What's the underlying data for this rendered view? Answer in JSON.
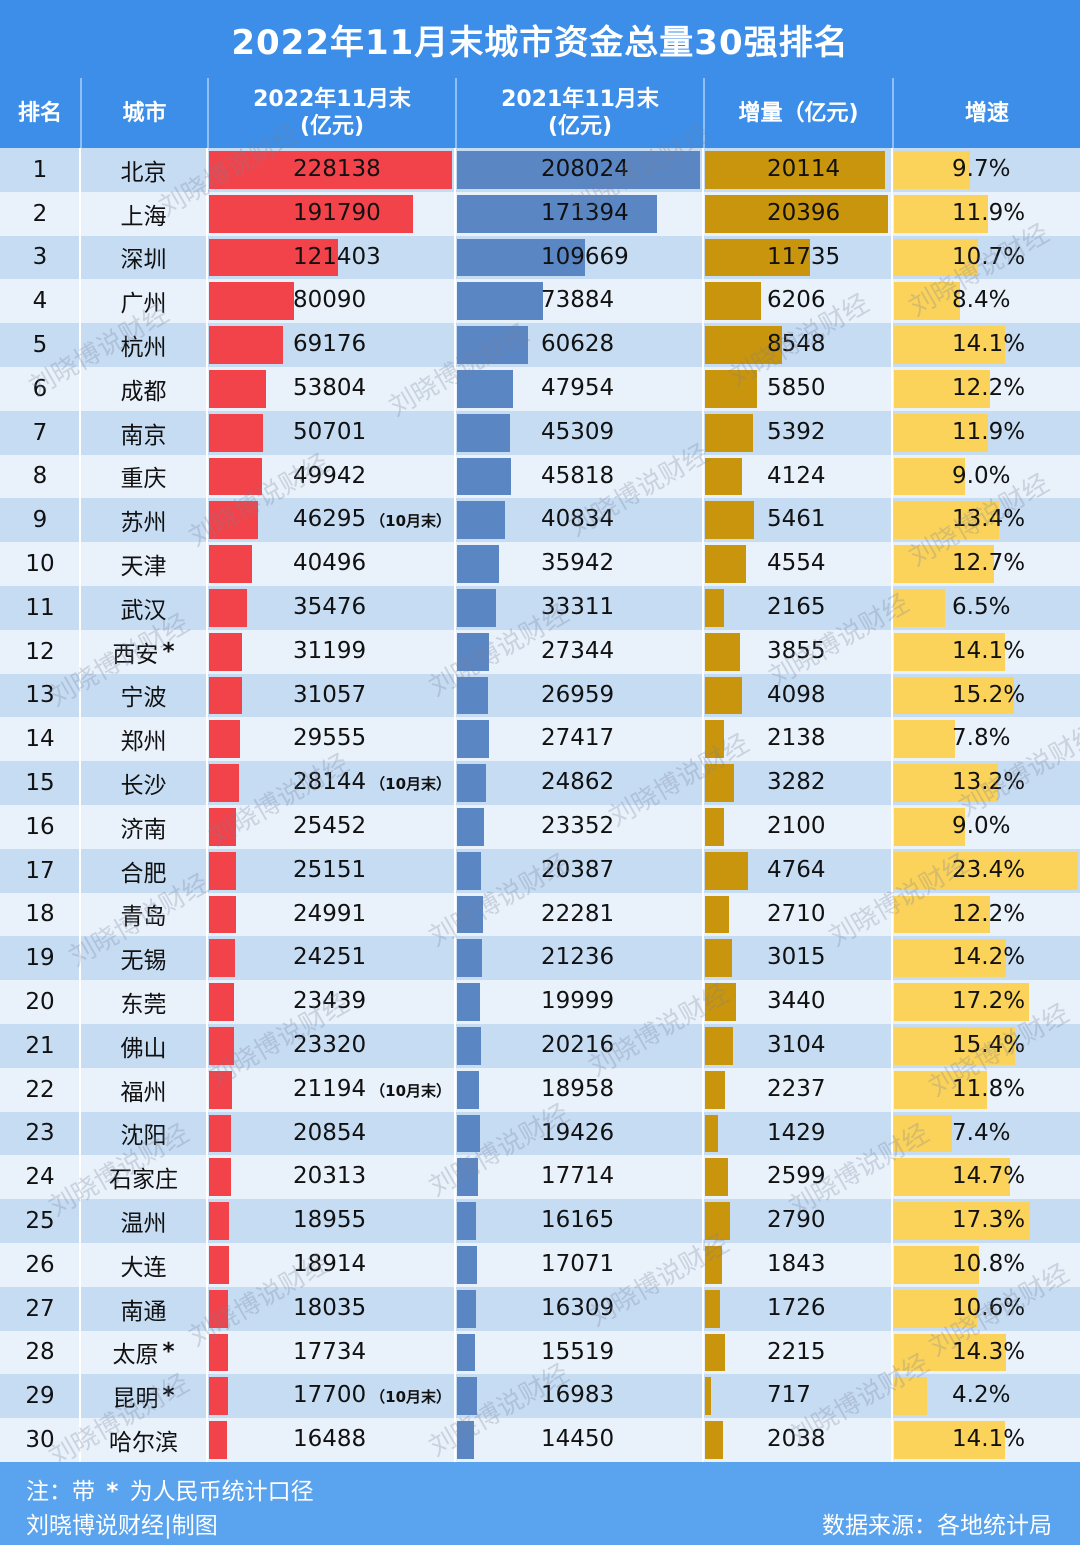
{
  "title": "2022年11月末城市资金总量30强排名",
  "headers": {
    "rank": "排名",
    "city": "城市",
    "v2022_line1": "2022年11月末",
    "v2022_line2": "(亿元)",
    "v2021_line1": "2021年11月末",
    "v2021_line2": "(亿元)",
    "increase": "增量（亿元)",
    "growth": "增速"
  },
  "colors": {
    "header_bg": "#3c8ee8",
    "bar_2022": "#f2434b",
    "bar_2021": "#5b86c4",
    "bar_increase": "#c9950c",
    "bar_growth": "#fbd35a"
  },
  "chart_data": {
    "type": "table",
    "title": "2022年11月末城市资金总量30强排名",
    "columns": [
      "排名",
      "城市",
      "2022年11月末(亿元)",
      "2021年11月末(亿元)",
      "增量（亿元)",
      "增速"
    ],
    "rows": [
      {
        "rank": "1",
        "city": "北京",
        "v2022": 228138,
        "v2021": 208024,
        "inc": 20114,
        "growth": 9.7,
        "growth_label": "9.7%",
        "note": "",
        "star": ""
      },
      {
        "rank": "2",
        "city": "上海",
        "v2022": 191790,
        "v2021": 171394,
        "inc": 20396,
        "growth": 11.9,
        "growth_label": "11.9%",
        "note": "",
        "star": ""
      },
      {
        "rank": "3",
        "city": "深圳",
        "v2022": 121403,
        "v2021": 109669,
        "inc": 11735,
        "growth": 10.7,
        "growth_label": "10.7%",
        "note": "",
        "star": ""
      },
      {
        "rank": "4",
        "city": "广州",
        "v2022": 80090,
        "v2021": 73884,
        "inc": 6206,
        "growth": 8.4,
        "growth_label": "8.4%",
        "note": "",
        "star": ""
      },
      {
        "rank": "5",
        "city": "杭州",
        "v2022": 69176,
        "v2021": 60628,
        "inc": 8548,
        "growth": 14.1,
        "growth_label": "14.1%",
        "note": "",
        "star": ""
      },
      {
        "rank": "6",
        "city": "成都",
        "v2022": 53804,
        "v2021": 47954,
        "inc": 5850,
        "growth": 12.2,
        "growth_label": "12.2%",
        "note": "",
        "star": ""
      },
      {
        "rank": "7",
        "city": "南京",
        "v2022": 50701,
        "v2021": 45309,
        "inc": 5392,
        "growth": 11.9,
        "growth_label": "11.9%",
        "note": "",
        "star": ""
      },
      {
        "rank": "8",
        "city": "重庆",
        "v2022": 49942,
        "v2021": 45818,
        "inc": 4124,
        "growth": 9.0,
        "growth_label": "9.0%",
        "note": "",
        "star": ""
      },
      {
        "rank": "9",
        "city": "苏州",
        "v2022": 46295,
        "v2021": 40834,
        "inc": 5461,
        "growth": 13.4,
        "growth_label": "13.4%",
        "note": "（10月末）",
        "star": ""
      },
      {
        "rank": "10",
        "city": "天津",
        "v2022": 40496,
        "v2021": 35942,
        "inc": 4554,
        "growth": 12.7,
        "growth_label": "12.7%",
        "note": "",
        "star": ""
      },
      {
        "rank": "11",
        "city": "武汉",
        "v2022": 35476,
        "v2021": 33311,
        "inc": 2165,
        "growth": 6.5,
        "growth_label": "6.5%",
        "note": "",
        "star": ""
      },
      {
        "rank": "12",
        "city": "西安",
        "v2022": 31199,
        "v2021": 27344,
        "inc": 3855,
        "growth": 14.1,
        "growth_label": "14.1%",
        "note": "",
        "star": "*"
      },
      {
        "rank": "13",
        "city": "宁波",
        "v2022": 31057,
        "v2021": 26959,
        "inc": 4098,
        "growth": 15.2,
        "growth_label": "15.2%",
        "note": "",
        "star": ""
      },
      {
        "rank": "14",
        "city": "郑州",
        "v2022": 29555,
        "v2021": 27417,
        "inc": 2138,
        "growth": 7.8,
        "growth_label": "7.8%",
        "note": "",
        "star": ""
      },
      {
        "rank": "15",
        "city": "长沙",
        "v2022": 28144,
        "v2021": 24862,
        "inc": 3282,
        "growth": 13.2,
        "growth_label": "13.2%",
        "note": "（10月末）",
        "star": ""
      },
      {
        "rank": "16",
        "city": "济南",
        "v2022": 25452,
        "v2021": 23352,
        "inc": 2100,
        "growth": 9.0,
        "growth_label": "9.0%",
        "note": "",
        "star": ""
      },
      {
        "rank": "17",
        "city": "合肥",
        "v2022": 25151,
        "v2021": 20387,
        "inc": 4764,
        "growth": 23.4,
        "growth_label": "23.4%",
        "note": "",
        "star": ""
      },
      {
        "rank": "18",
        "city": "青岛",
        "v2022": 24991,
        "v2021": 22281,
        "inc": 2710,
        "growth": 12.2,
        "growth_label": "12.2%",
        "note": "",
        "star": ""
      },
      {
        "rank": "19",
        "city": "无锡",
        "v2022": 24251,
        "v2021": 21236,
        "inc": 3015,
        "growth": 14.2,
        "growth_label": "14.2%",
        "note": "",
        "star": ""
      },
      {
        "rank": "20",
        "city": "东莞",
        "v2022": 23439,
        "v2021": 19999,
        "inc": 3440,
        "growth": 17.2,
        "growth_label": "17.2%",
        "note": "",
        "star": ""
      },
      {
        "rank": "21",
        "city": "佛山",
        "v2022": 23320,
        "v2021": 20216,
        "inc": 3104,
        "growth": 15.4,
        "growth_label": "15.4%",
        "note": "",
        "star": ""
      },
      {
        "rank": "22",
        "city": "福州",
        "v2022": 21194,
        "v2021": 18958,
        "inc": 2237,
        "growth": 11.8,
        "growth_label": "11.8%",
        "note": "（10月末）",
        "star": ""
      },
      {
        "rank": "23",
        "city": "沈阳",
        "v2022": 20854,
        "v2021": 19426,
        "inc": 1429,
        "growth": 7.4,
        "growth_label": "7.4%",
        "note": "",
        "star": ""
      },
      {
        "rank": "24",
        "city": "石家庄",
        "v2022": 20313,
        "v2021": 17714,
        "inc": 2599,
        "growth": 14.7,
        "growth_label": "14.7%",
        "note": "",
        "star": ""
      },
      {
        "rank": "25",
        "city": "温州",
        "v2022": 18955,
        "v2021": 16165,
        "inc": 2790,
        "growth": 17.3,
        "growth_label": "17.3%",
        "note": "",
        "star": ""
      },
      {
        "rank": "26",
        "city": "大连",
        "v2022": 18914,
        "v2021": 17071,
        "inc": 1843,
        "growth": 10.8,
        "growth_label": "10.8%",
        "note": "",
        "star": ""
      },
      {
        "rank": "27",
        "city": "南通",
        "v2022": 18035,
        "v2021": 16309,
        "inc": 1726,
        "growth": 10.6,
        "growth_label": "10.6%",
        "note": "",
        "star": ""
      },
      {
        "rank": "28",
        "city": "太原",
        "v2022": 17734,
        "v2021": 15519,
        "inc": 2215,
        "growth": 14.3,
        "growth_label": "14.3%",
        "note": "",
        "star": "*"
      },
      {
        "rank": "29",
        "city": "昆明",
        "v2022": 17700,
        "v2021": 16983,
        "inc": 717,
        "growth": 4.2,
        "growth_label": "4.2%",
        "note": "（10月末）",
        "star": "*"
      },
      {
        "rank": "30",
        "city": "哈尔滨",
        "v2022": 16488,
        "v2021": 14450,
        "inc": 2038,
        "growth": 14.1,
        "growth_label": "14.1%",
        "note": "",
        "star": ""
      }
    ]
  },
  "footer": {
    "note_prefix": "注：带",
    "note_star": "*",
    "note_suffix": "为人民币统计口径",
    "credit": "刘晓博说财经|制图",
    "source": "数据来源：各地统计局"
  },
  "watermark": "刘晓博说财经"
}
